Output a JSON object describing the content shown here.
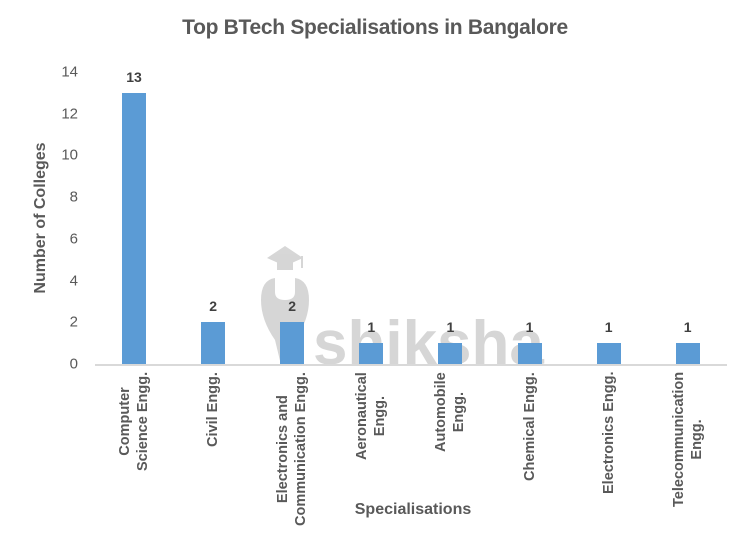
{
  "chart_data": {
    "type": "bar",
    "title": "Top BTech Specialisations in Bangalore",
    "xlabel": "Specialisations",
    "ylabel": "Number of Colleges",
    "ylim": [
      0,
      14
    ],
    "yticks": [
      0,
      2,
      4,
      6,
      8,
      10,
      12,
      14
    ],
    "grid": false,
    "legend": null,
    "categories": [
      "Computer Science Engg.",
      "Civil Engg.",
      "Electronics and Communication Engg.",
      "Aeronautical Engg.",
      "Automobile Engg.",
      "Chemical Engg.",
      "Electronics Engg.",
      "Telecommunication Engg."
    ],
    "category_label_lines": [
      [
        "Computer",
        "Science Engg."
      ],
      [
        "Civil Engg."
      ],
      [
        "Electronics and",
        "Communication Engg."
      ],
      [
        "Aeronautical",
        "Engg."
      ],
      [
        "Automobile",
        "Engg."
      ],
      [
        "Chemical Engg."
      ],
      [
        "Electronics Engg."
      ],
      [
        "Telecommunication",
        "Engg."
      ]
    ],
    "values": [
      13,
      2,
      2,
      1,
      1,
      1,
      1,
      1
    ],
    "data_labels": [
      "13",
      "2",
      "2",
      "1",
      "1",
      "1",
      "1",
      "1"
    ],
    "bar_color": "#5B9BD5",
    "watermark": "shiksha"
  }
}
